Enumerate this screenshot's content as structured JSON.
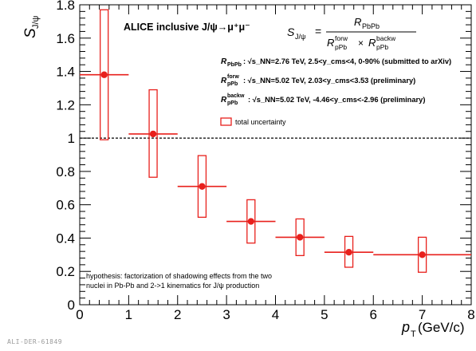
{
  "chart_data": {
    "type": "scatter",
    "title": "ALICE inclusive J/ψ→μ⁺μ⁻",
    "formula": {
      "lhs_symbol": "S",
      "lhs_sub": "J/ψ",
      "numerator": "R",
      "numerator_sub": "PbPb",
      "den_left": "R",
      "den_left_sub": "pPb",
      "den_left_sup": "forw",
      "times": "×",
      "den_right": "R",
      "den_right_sub": "pPb",
      "den_right_sup": "backw"
    },
    "legend_lines": [
      {
        "r_sub": "PbPb",
        "r_sup": "",
        "text": ": √s_NN=2.76 TeV, 2.5<y_cms<4, 0-90% (submitted to arXiv)"
      },
      {
        "r_sub": "pPb",
        "r_sup": "forw",
        "text": ": √s_NN=5.02 TeV, 2.03<y_cms<3.53 (preliminary)"
      },
      {
        "r_sub": "pPb",
        "r_sup": "backw",
        "text": ": √s_NN=5.02 TeV, -4.46<y_cms<-2.96 (preliminary)"
      }
    ],
    "legend_box_label": "total uncertainty",
    "ylabel": "S",
    "ylabel_sub": "J/ψ",
    "xlabel_prefix": "p",
    "xlabel_sub": "T",
    "xlabel_suffix": "(GeV/c)",
    "xlim": [
      0,
      8
    ],
    "ylim": [
      0,
      1.8
    ],
    "x_ticks": [
      "0",
      "1",
      "2",
      "3",
      "4",
      "5",
      "6",
      "7",
      "8"
    ],
    "y_ticks": [
      "0",
      "0.2",
      "0.4",
      "0.6",
      "0.8",
      "1",
      "1.2",
      "1.4",
      "1.6",
      "1.8"
    ],
    "reference_line_y": 1.0,
    "series": [
      {
        "color": "#e8201c",
        "points": [
          {
            "x": 0.5,
            "y": 1.38,
            "x_low": 0.0,
            "x_high": 1.0,
            "box_low": 0.99,
            "box_high": 1.77
          },
          {
            "x": 1.5,
            "y": 1.025,
            "x_low": 1.0,
            "x_high": 2.0,
            "box_low": 0.765,
            "box_high": 1.29
          },
          {
            "x": 2.5,
            "y": 0.71,
            "x_low": 2.0,
            "x_high": 3.0,
            "box_low": 0.525,
            "box_high": 0.895
          },
          {
            "x": 3.5,
            "y": 0.5,
            "x_low": 3.0,
            "x_high": 4.0,
            "box_low": 0.37,
            "box_high": 0.63
          },
          {
            "x": 4.5,
            "y": 0.405,
            "x_low": 4.0,
            "x_high": 5.0,
            "box_low": 0.295,
            "box_high": 0.515
          },
          {
            "x": 5.5,
            "y": 0.315,
            "x_low": 5.0,
            "x_high": 6.0,
            "box_low": 0.225,
            "box_high": 0.41
          },
          {
            "x": 7.0,
            "y": 0.3,
            "x_low": 6.0,
            "x_high": 8.0,
            "box_low": 0.195,
            "box_high": 0.405
          }
        ]
      }
    ],
    "annotation_lines": [
      "hypothesis: factorization of shadowing effects from the two",
      "nuclei in Pb-Pb and 2->1 kinematics for J/ψ production"
    ],
    "grid": false
  },
  "figure_id": "ALI-DER-61849"
}
